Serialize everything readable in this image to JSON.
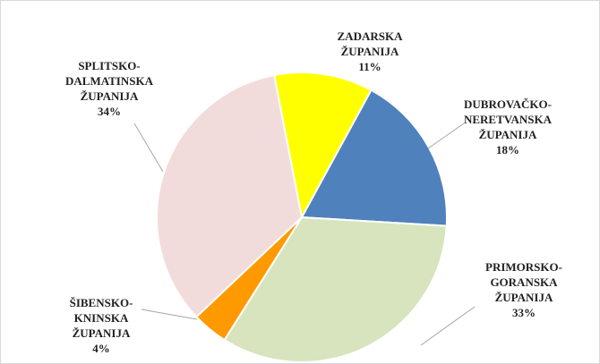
{
  "chart_data": {
    "type": "pie",
    "categories": [
      [
        "ZADARSKA",
        "ŽUPANIJA"
      ],
      [
        "DUBROVAČKO-",
        "NERETVANSKA",
        "ŽUPANIJA"
      ],
      [
        "PRIMORSKO-",
        "GORANSKA",
        "ŽUPANIJA"
      ],
      [
        "ŠIBENSKO-",
        "KNINSKA",
        "ŽUPANIJA"
      ],
      [
        "SPLITSKO-",
        "DALMATINSKA",
        "ŽUPANIJA"
      ]
    ],
    "values": [
      11,
      18,
      33,
      4,
      34
    ],
    "value_labels": [
      "11%",
      "18%",
      "33%",
      "4%",
      "34%"
    ],
    "colors": [
      "#ffff00",
      "#4f81bd",
      "#d7e4bd",
      "#ff9900",
      "#f2dcdb"
    ]
  }
}
